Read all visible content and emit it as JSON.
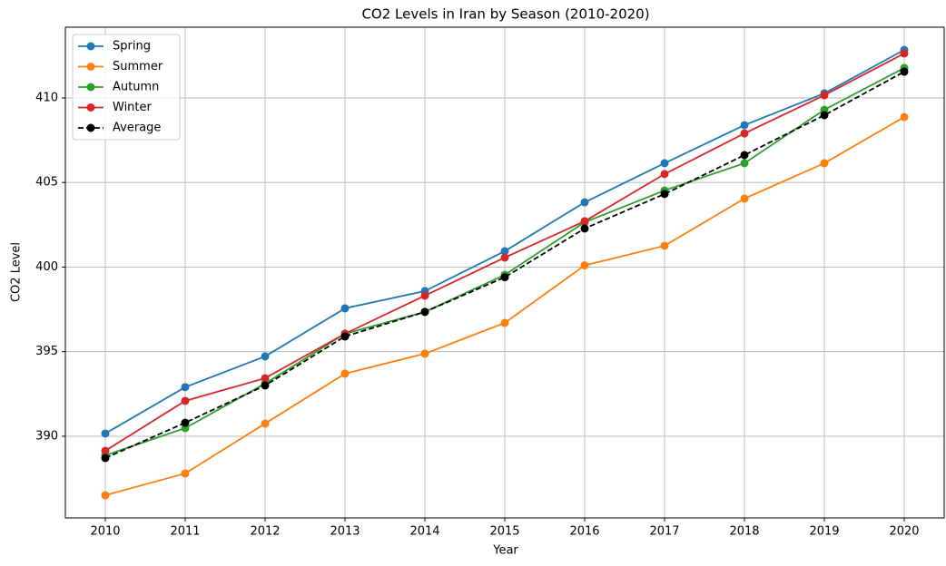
{
  "chart_data": {
    "type": "line",
    "title": "CO2 Levels in Iran by Season (2010-2020)",
    "xlabel": "Year",
    "ylabel": "CO2 Level",
    "x": [
      2010,
      2011,
      2012,
      2013,
      2014,
      2015,
      2016,
      2017,
      2018,
      2019,
      2020
    ],
    "series": [
      {
        "name": "Spring",
        "color": "#1f77b4",
        "linestyle": "solid",
        "values": [
          390.16,
          392.9,
          394.72,
          397.56,
          398.58,
          400.94,
          403.83,
          406.14,
          408.39,
          410.27,
          412.84
        ]
      },
      {
        "name": "Summer",
        "color": "#ff7f0e",
        "linestyle": "solid",
        "values": [
          386.51,
          387.8,
          390.75,
          393.7,
          394.88,
          396.7,
          400.1,
          401.26,
          404.05,
          406.14,
          408.87
        ]
      },
      {
        "name": "Autumn",
        "color": "#2ca02c",
        "linestyle": "solid",
        "values": [
          388.87,
          390.48,
          393.11,
          396.06,
          397.35,
          399.54,
          402.65,
          404.53,
          406.14,
          409.3,
          411.77
        ]
      },
      {
        "name": "Winter",
        "color": "#d62728",
        "linestyle": "solid",
        "values": [
          389.14,
          392.09,
          393.43,
          396.06,
          398.31,
          400.56,
          402.71,
          405.5,
          407.9,
          410.16,
          412.63
        ]
      },
      {
        "name": "Average",
        "color": "#000000",
        "linestyle": "dashed",
        "values": [
          388.71,
          390.8,
          393.0,
          395.9,
          397.35,
          399.4,
          402.28,
          404.32,
          406.62,
          408.98,
          411.55
        ]
      }
    ],
    "xlim": [
      2009.5,
      2020.5
    ],
    "xticks": [
      2010,
      2011,
      2012,
      2013,
      2014,
      2015,
      2016,
      2017,
      2018,
      2019,
      2020
    ],
    "ylim": [
      385.17,
      414.18
    ],
    "yticks": [
      390,
      395,
      400,
      405,
      410
    ],
    "grid": true,
    "legend": "upper left"
  }
}
